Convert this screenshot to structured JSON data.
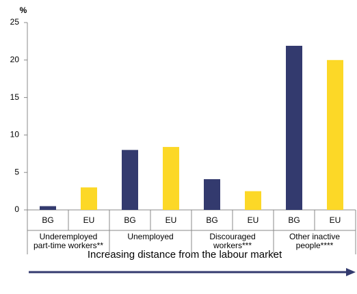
{
  "chart_data": {
    "type": "bar",
    "y_label": "%",
    "categories": [
      "Underemployed\npart-time workers**",
      "Unemployed",
      "Discouraged\nworkers***",
      "Other inactive\npeople****"
    ],
    "series": [
      {
        "name": "BG",
        "color": "#333a6e",
        "values": [
          0.5,
          8.0,
          4.1,
          21.9
        ]
      },
      {
        "name": "EU",
        "color": "#fcd827",
        "values": [
          3.0,
          8.4,
          2.5,
          20.0
        ]
      }
    ],
    "ylim": [
      0,
      25
    ],
    "yticks": [
      0,
      5,
      10,
      15,
      20,
      25
    ],
    "x_label": "Increasing distance from the labour market"
  }
}
